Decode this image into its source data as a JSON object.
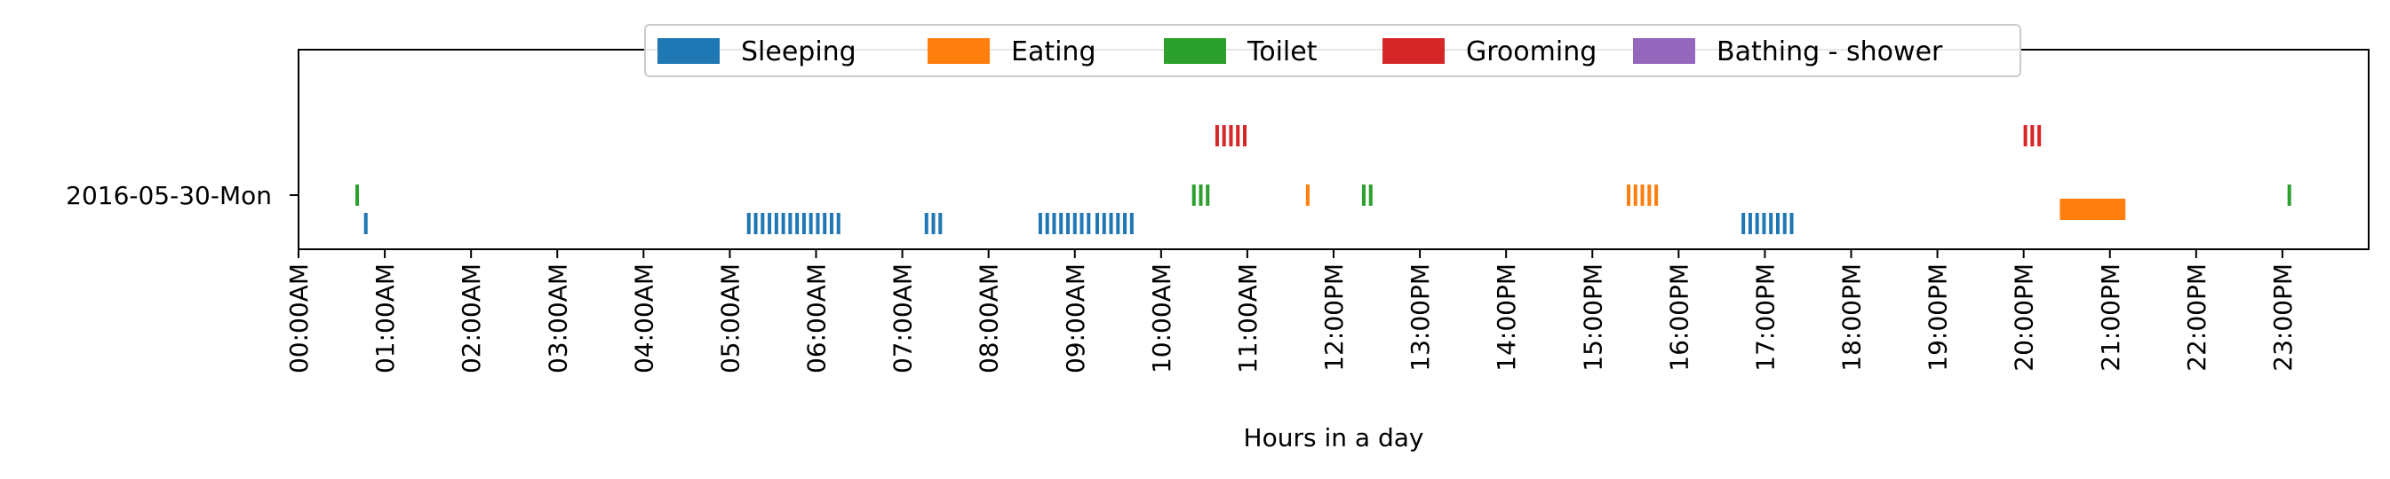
{
  "chart_data": {
    "type": "timeline",
    "title": "",
    "xlabel": "Hours in a day",
    "ylabel": "",
    "xlim": [
      0,
      24
    ],
    "x_unit": "hours",
    "x_tick_labels": [
      "00:00AM",
      "01:00AM",
      "02:00AM",
      "03:00AM",
      "04:00AM",
      "05:00AM",
      "06:00AM",
      "07:00AM",
      "08:00AM",
      "09:00AM",
      "10:00AM",
      "11:00AM",
      "12:00PM",
      "13:00PM",
      "14:00PM",
      "15:00PM",
      "16:00PM",
      "17:00PM",
      "18:00PM",
      "19:00PM",
      "20:00PM",
      "21:00PM",
      "22:00PM",
      "23:00PM"
    ],
    "y_categories": [
      "2016-05-30-Mon"
    ],
    "legend": {
      "placement": "top-center",
      "columns": 5
    },
    "series": [
      {
        "name": "Sleeping",
        "color": "#1f77b4",
        "row": "low",
        "ticks": [
          0.78,
          5.22,
          5.3,
          5.38,
          5.46,
          5.54,
          5.62,
          5.7,
          5.78,
          5.86,
          5.94,
          6.02,
          6.1,
          6.18,
          6.26,
          7.28,
          7.36,
          7.44,
          8.6,
          8.68,
          8.76,
          8.84,
          8.92,
          9.0,
          9.08,
          9.16,
          9.26,
          9.34,
          9.42,
          9.5,
          9.58,
          9.66,
          16.75,
          16.83,
          16.91,
          16.99,
          17.07,
          17.15,
          17.23,
          17.31
        ],
        "intervals": []
      },
      {
        "name": "Eating",
        "color": "#ff7f0e",
        "row": "mid",
        "ticks": [
          11.7,
          15.42,
          15.5,
          15.58,
          15.66,
          15.74
        ],
        "intervals": [
          [
            20.42,
            21.18
          ]
        ]
      },
      {
        "name": "Toilet",
        "color": "#2ca02c",
        "row": "mid",
        "ticks": [
          0.68,
          10.38,
          10.46,
          10.54,
          12.35,
          12.43,
          23.08
        ],
        "intervals": []
      },
      {
        "name": "Grooming",
        "color": "#d62728",
        "row": "high",
        "ticks": [
          10.65,
          10.73,
          10.81,
          10.89,
          10.97,
          20.02,
          20.1,
          20.18
        ],
        "intervals": []
      },
      {
        "name": "Bathing - shower",
        "color": "#9467bd",
        "row": "mid",
        "ticks": [],
        "intervals": []
      }
    ]
  }
}
